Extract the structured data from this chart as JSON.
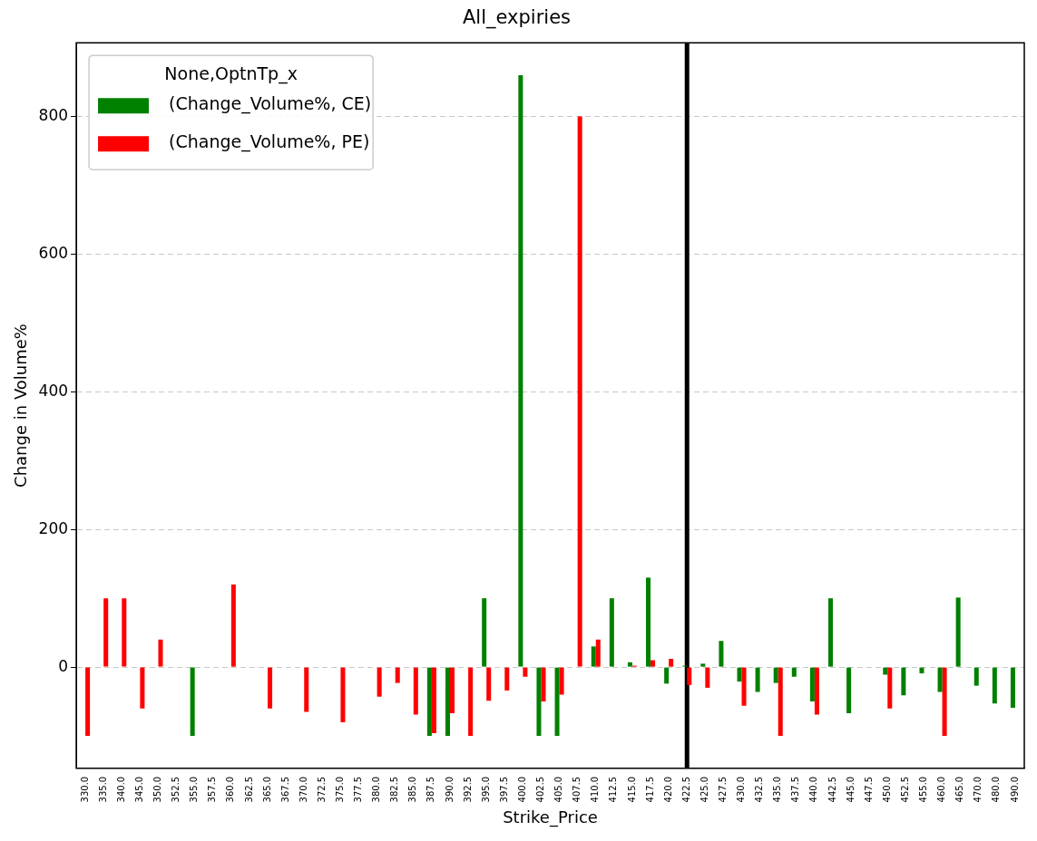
{
  "chart_data": {
    "type": "bar",
    "title": "All_expiries",
    "xlabel": "Strike_Price",
    "ylabel": "Change in Volume%",
    "legend_title": "None,OptnTp_x",
    "categories": [
      "330.0",
      "335.0",
      "340.0",
      "345.0",
      "350.0",
      "352.5",
      "355.0",
      "357.5",
      "360.0",
      "362.5",
      "365.0",
      "367.5",
      "370.0",
      "372.5",
      "375.0",
      "377.5",
      "380.0",
      "382.5",
      "385.0",
      "387.5",
      "390.0",
      "392.5",
      "395.0",
      "397.5",
      "400.0",
      "402.5",
      "405.0",
      "407.5",
      "410.0",
      "412.5",
      "415.0",
      "417.5",
      "420.0",
      "422.5",
      "425.0",
      "427.5",
      "430.0",
      "432.5",
      "435.0",
      "437.5",
      "440.0",
      "442.5",
      "445.0",
      "447.5",
      "450.0",
      "452.5",
      "455.0",
      "460.0",
      "465.0",
      "470.0",
      "480.0",
      "490.0"
    ],
    "series": [
      {
        "name": "(Change_Volume%, CE)",
        "color": "#008000",
        "values": [
          null,
          null,
          null,
          null,
          null,
          null,
          -100,
          null,
          null,
          null,
          null,
          null,
          null,
          null,
          null,
          null,
          null,
          null,
          null,
          -100,
          -100,
          null,
          100,
          null,
          860,
          -100,
          -100,
          null,
          30,
          100,
          7,
          130,
          -24,
          2,
          5,
          38,
          -21,
          -36,
          -23,
          -14,
          -50,
          100,
          -67,
          null,
          -11,
          -41,
          -9,
          -36,
          101,
          -27,
          -53,
          -59
        ]
      },
      {
        "name": "(Change_Volume%, PE)",
        "color": "#ff0000",
        "values": [
          -100,
          100,
          100,
          -60,
          40,
          null,
          null,
          null,
          120,
          null,
          -60,
          null,
          -65,
          null,
          -80,
          null,
          -43,
          -23,
          -69,
          -96,
          -67,
          -100,
          -49,
          -34,
          -14,
          -50,
          -40,
          800,
          40,
          null,
          2,
          10,
          12,
          -26,
          -30,
          null,
          -56,
          null,
          -100,
          null,
          -69,
          null,
          null,
          null,
          -60,
          null,
          null,
          -100,
          null,
          null,
          null,
          null
        ]
      }
    ],
    "ylim": [
      -147,
      907
    ],
    "yticks": [
      0,
      200,
      400,
      600,
      800
    ],
    "grid": "y",
    "legend": "top left",
    "ref_lines": [
      {
        "axis": "x",
        "value": "422.5",
        "color": "#000000",
        "line_style": "solid"
      }
    ]
  }
}
